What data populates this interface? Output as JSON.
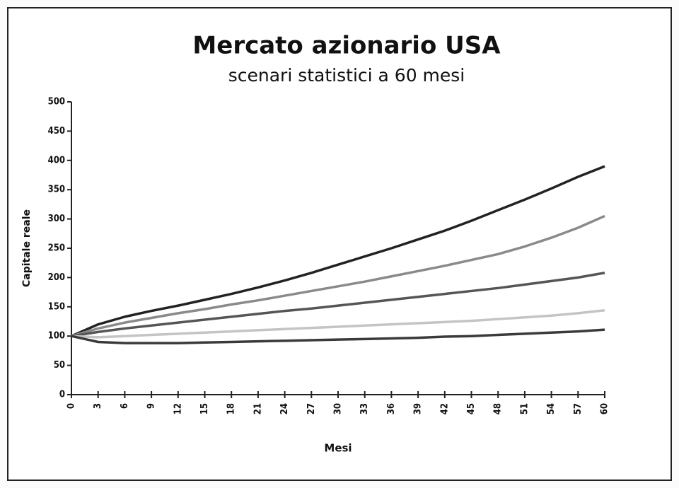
{
  "chart_data": {
    "type": "line",
    "title": "Mercato azionario USA",
    "subtitle": "scenari statistici a 60 mesi",
    "y_label": "Capitale reale",
    "x_label": "Mesi",
    "x": [
      0,
      3,
      6,
      9,
      12,
      15,
      18,
      21,
      24,
      27,
      30,
      33,
      36,
      39,
      42,
      45,
      48,
      51,
      54,
      57,
      60
    ],
    "series": [
      {
        "color": "#222222",
        "values": [
          100,
          120,
          133,
          143,
          152,
          162,
          172,
          183,
          195,
          208,
          222,
          236,
          250,
          265,
          280,
          297,
          315,
          333,
          352,
          372,
          390
        ]
      },
      {
        "color": "#8a8a8a",
        "values": [
          100,
          113,
          123,
          131,
          139,
          146,
          154,
          161,
          169,
          177,
          185,
          193,
          202,
          211,
          220,
          230,
          240,
          253,
          268,
          285,
          305
        ]
      },
      {
        "color": "#555555",
        "values": [
          100,
          107,
          113,
          118,
          123,
          128,
          133,
          138,
          143,
          147,
          152,
          157,
          162,
          167,
          172,
          177,
          182,
          188,
          194,
          200,
          208
        ]
      },
      {
        "color": "#c4c4c4",
        "values": [
          100,
          98,
          100,
          102,
          104,
          106,
          108,
          110,
          112,
          114,
          116,
          118,
          120,
          122,
          124,
          126,
          129,
          132,
          135,
          139,
          144
        ]
      },
      {
        "color": "#3a3a3a",
        "values": [
          100,
          90,
          88,
          88,
          88,
          89,
          90,
          91,
          92,
          93,
          94,
          95,
          96,
          97,
          99,
          100,
          102,
          104,
          106,
          108,
          111
        ]
      }
    ],
    "xlim": [
      0,
      60
    ],
    "xticks": [
      0,
      3,
      6,
      9,
      12,
      15,
      18,
      21,
      24,
      27,
      30,
      33,
      36,
      39,
      42,
      45,
      48,
      51,
      54,
      57,
      60
    ],
    "ylim": [
      0,
      500
    ],
    "yticks": [
      0,
      50,
      100,
      150,
      200,
      250,
      300,
      350,
      400,
      450,
      500
    ],
    "grid": false
  }
}
